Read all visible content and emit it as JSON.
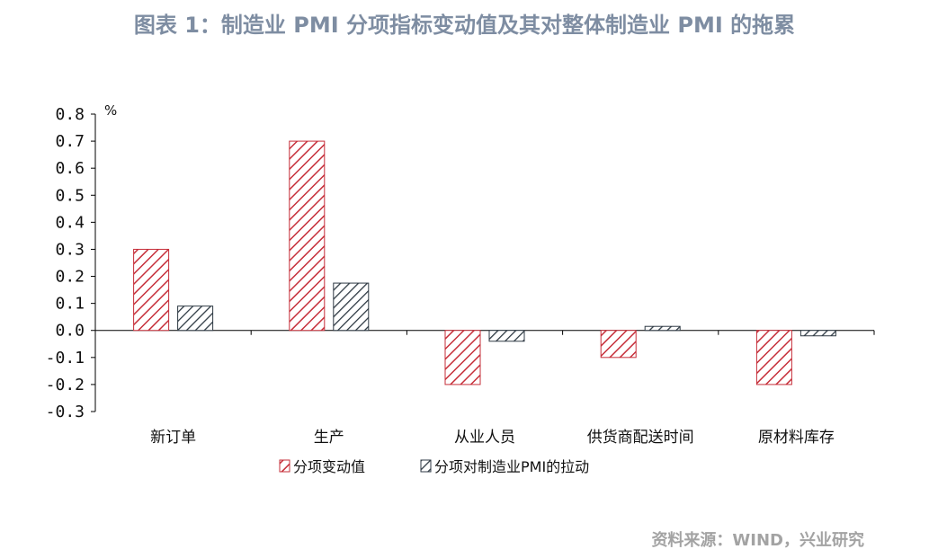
{
  "title": "图表 1：制造业 PMI 分项指标变动值及其对整体制造业 PMI 的拖累",
  "source": "资料来源：WIND，兴业研究",
  "chart_data": {
    "type": "bar",
    "unit_label": "%",
    "categories": [
      "新订单",
      "生产",
      "从业人员",
      "供货商配送时间",
      "原材料库存"
    ],
    "series": [
      {
        "name": "分项变动值",
        "values": [
          0.3,
          0.7,
          -0.2,
          -0.1,
          -0.2
        ],
        "color": "#c0392b",
        "pattern": "red-hatch"
      },
      {
        "name": "分项对制造业PMI的拉动",
        "values": [
          0.09,
          0.175,
          -0.04,
          0.015,
          -0.02
        ],
        "color": "#2f3a44",
        "pattern": "dark-hatch"
      }
    ],
    "ylim": [
      -0.3,
      0.8
    ],
    "yticks": [
      "0.8",
      "0.7",
      "0.6",
      "0.5",
      "0.4",
      "0.3",
      "0.2",
      "0.1",
      "0.0",
      "-0.1",
      "-0.2",
      "-0.3"
    ],
    "legend_position": "bottom",
    "grid": false
  }
}
